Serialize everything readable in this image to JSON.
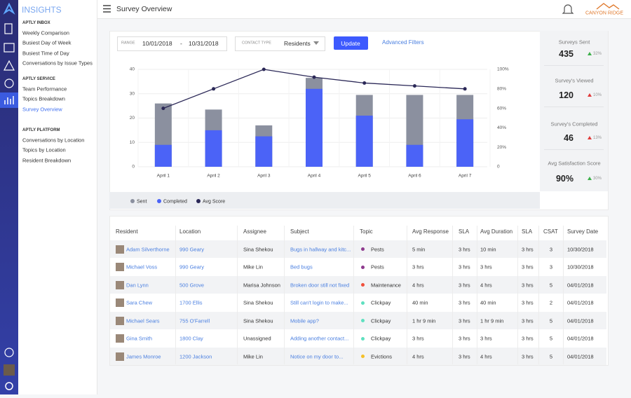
{
  "app": {
    "name": "INSIGHTS"
  },
  "nav": [
    {
      "heading": "APTLY INBOX",
      "items": [
        "Weekly Comparison",
        "Busiest Day of Week",
        "Busiest Time of Day",
        "Conversations by Issue Types"
      ]
    },
    {
      "heading": "APTLY SERVICE",
      "items": [
        "Team Performance",
        "Topics Breakdown",
        "Survey Overview"
      ]
    },
    {
      "heading": "APTLY PLATFORM",
      "items": [
        "Conversations by Location",
        "Topics by Location",
        "Resident Breakdown"
      ]
    }
  ],
  "active_nav": {
    "section": 1,
    "item": 2
  },
  "header": {
    "title": "Survey Overview",
    "brand": "CANYON RIDGE"
  },
  "filters": {
    "range_label": "RANGE",
    "start": "10/01/2018",
    "separator": "-",
    "end": "10/31/2018",
    "contact_label": "CONTACT TYPE",
    "contact_value": "Residents",
    "update": "Update",
    "advanced": "Advanced Filters"
  },
  "stats": [
    {
      "label": "Surveys Sent",
      "value": "435",
      "change": "32%",
      "change_color": "#3cb04a"
    },
    {
      "label": "Survey's Viewed",
      "value": "120",
      "change": "10%",
      "change_color": "#e03a3a"
    },
    {
      "label": "Survey's Completed",
      "value": "46",
      "change": "13%",
      "change_color": "#e03a3a"
    },
    {
      "label": "Avg Satisfaction Score",
      "value": "90%",
      "change": "30%",
      "change_color": "#3cb04a"
    }
  ],
  "chart_data": {
    "type": "bar",
    "categories": [
      "April 1",
      "April 2",
      "April 3",
      "April 4",
      "April 5",
      "April 6",
      "April 7"
    ],
    "series": [
      {
        "name": "Sent",
        "color": "#8b909f",
        "values": [
          26,
          23.5,
          17,
          36.5,
          29.5,
          29.5,
          29.5
        ]
      },
      {
        "name": "Completed",
        "color": "#4b63f7",
        "values": [
          9,
          15,
          12.5,
          32,
          21,
          9,
          19.5
        ]
      },
      {
        "name": "Avg Score",
        "color": "#2b2857",
        "type": "line",
        "axis": "y2",
        "values": [
          60,
          80,
          100,
          92,
          86,
          83,
          80
        ]
      }
    ],
    "ylim": [
      0,
      40
    ],
    "yticks": [
      0,
      10,
      20,
      30,
      40
    ],
    "y2lim": [
      0,
      100
    ],
    "y2ticks": [
      0,
      {
        "value": 20,
        "label": "20%"
      },
      {
        "value": 40,
        "label": "40%"
      },
      {
        "value": 60,
        "label": "60%"
      },
      {
        "value": 80,
        "label": "80%"
      },
      {
        "value": 100,
        "label": "100%"
      }
    ],
    "grid": true,
    "legend": "bottom"
  },
  "table": {
    "columns": [
      "Resident",
      "Location",
      "Assignee",
      "Subject",
      "Topic",
      "Avg Response",
      "SLA",
      "Avg Duration",
      "SLA",
      "CSAT",
      "Survey Date"
    ],
    "rows": [
      {
        "resident": "Adam Silverthorne",
        "location": "990 Geary",
        "assignee": "Sina Shekou",
        "subject": "Bugs in hallway and kitc...",
        "topic": "Pests",
        "topic_color": "#8e3a8e",
        "avg_response": "5 min",
        "sla": "3 hrs",
        "avg_duration": "10 min",
        "sla_2": "3 hrs",
        "csat": 3,
        "survey_date": "10/30/2018"
      },
      {
        "resident": "Michael Voss",
        "location": "990 Geary",
        "assignee": "Mike Lin",
        "subject": "Bed bugs",
        "topic": "Pests",
        "topic_color": "#8e3a8e",
        "avg_response": "3 hrs",
        "sla": "3 hrs",
        "avg_duration": "3 hrs",
        "sla_2": "3 hrs",
        "csat": 3,
        "survey_date": "10/30/2018"
      },
      {
        "resident": "Dan Lynn",
        "location": "500 Grove",
        "assignee": "Marisa Johnson",
        "subject": "Broken door still not fixed",
        "topic": "Maintenance",
        "topic_color": "#f0503c",
        "avg_response": "4 hrs",
        "sla": "3 hrs",
        "avg_duration": "4 hrs",
        "sla_2": "3 hrs",
        "csat": 5,
        "survey_date": "04/01/2018"
      },
      {
        "resident": "Sara Chew",
        "location": "1700 Ellis",
        "assignee": "Sina Shekou",
        "subject": "Still can't login to make...",
        "topic": "Clickpay",
        "topic_color": "#5fe0c0",
        "avg_response": "40 min",
        "sla": "3 hrs",
        "avg_duration": "40 min",
        "sla_2": "3 hrs",
        "csat": 2,
        "survey_date": "04/01/2018"
      },
      {
        "resident": "Michael Sears",
        "location": "755 O'Farrell",
        "assignee": "Sina Shekou",
        "subject": "Mobile app?",
        "topic": "Clickpay",
        "topic_color": "#5fe0c0",
        "avg_response": "1 hr 9 min",
        "sla": "3 hrs",
        "avg_duration": "1 hr 9 min",
        "sla_2": "3 hrs",
        "csat": 5,
        "survey_date": "04/01/2018"
      },
      {
        "resident": "Gina Smith",
        "location": "1800 Clay",
        "assignee": "Unassigned",
        "subject": "Adding another contact...",
        "topic": "Clickpay",
        "topic_color": "#5fe0c0",
        "avg_response": "3 hrs",
        "sla": "3 hrs",
        "avg_duration": "3 hrs",
        "sla_2": "3 hrs",
        "csat": 5,
        "survey_date": "04/01/2018"
      },
      {
        "resident": "James Monroe",
        "location": "1200 Jackson",
        "assignee": "Mike Lin",
        "subject": "Notice on my door to...",
        "topic": "Evictions",
        "topic_color": "#f5c027",
        "avg_response": "4 hrs",
        "sla": "3 hrs",
        "avg_duration": "4 hrs",
        "sla_2": "3 hrs",
        "csat": 5,
        "survey_date": "04/01/2018"
      }
    ]
  }
}
